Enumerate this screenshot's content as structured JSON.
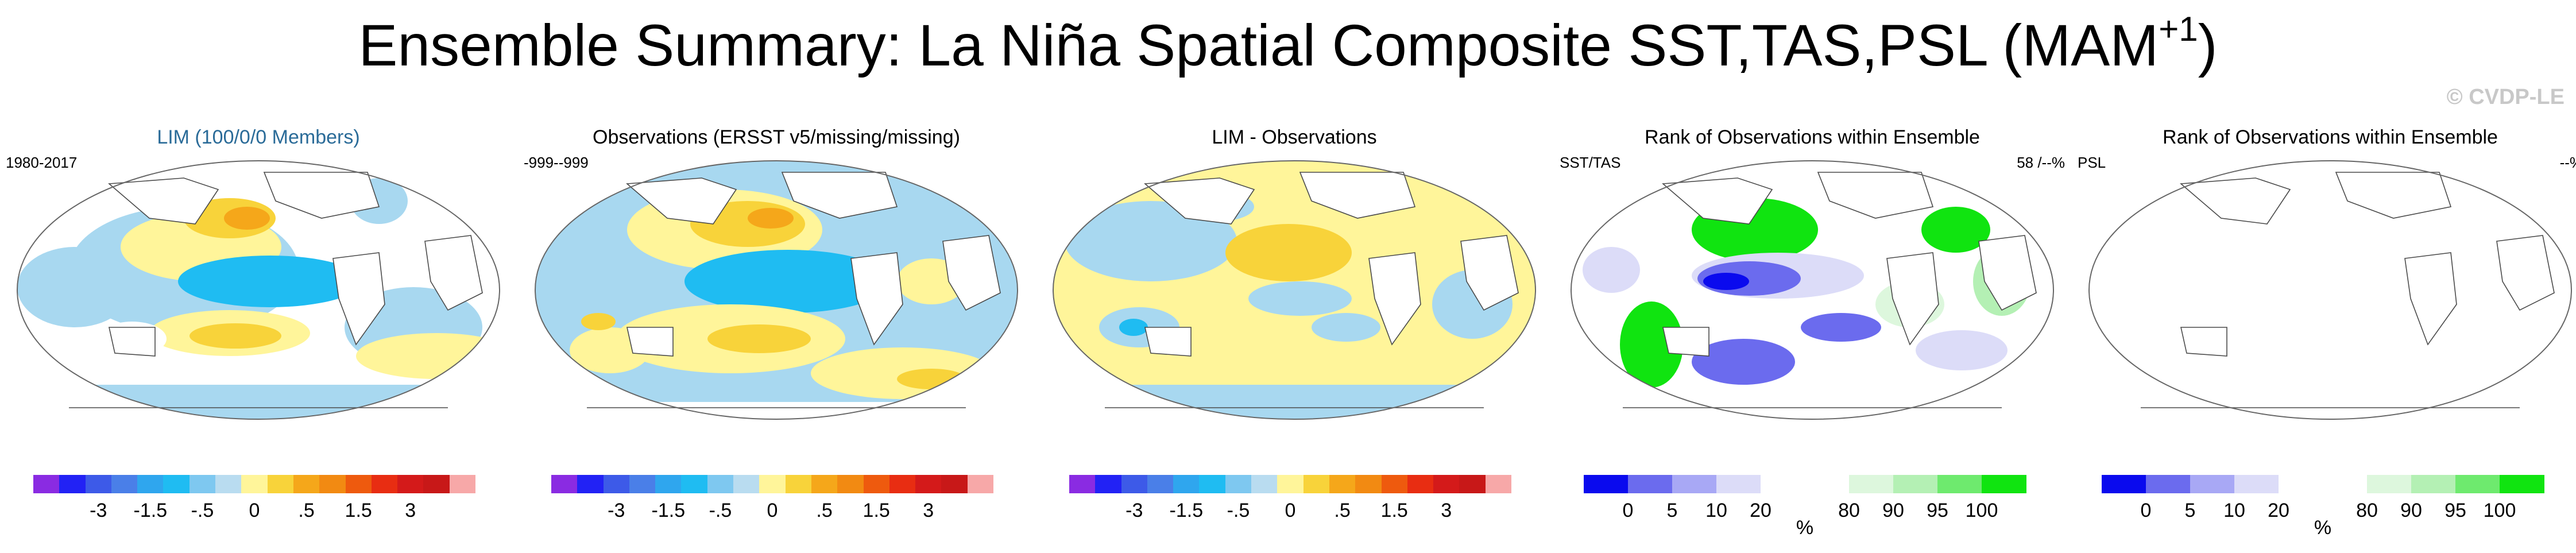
{
  "title": "Ensemble Summary: La Niña Spatial Composite SST,TAS,PSL (MAM",
  "title_superscript": "+1",
  "title_close": ")",
  "watermark": "© CVDP-LE",
  "panels": [
    {
      "title": "LIM (100/0/0 Members)",
      "left_label": "1980-2017",
      "right_label": "",
      "type": "anomaly"
    },
    {
      "title": "Observations (ERSST v5/missing/missing)",
      "left_label": "-999--999",
      "right_label": "",
      "type": "anomaly"
    },
    {
      "title": "LIM - Observations",
      "left_label": "",
      "right_label": "",
      "type": "anomaly"
    },
    {
      "title": "Rank of Observations within Ensemble",
      "left_label": "SST/TAS",
      "right_label": "58 /--%",
      "type": "rank"
    },
    {
      "title": "Rank of Observations within Ensemble",
      "left_label": "PSL",
      "right_label": "--%",
      "type": "rank"
    }
  ],
  "anomaly_colorbar": {
    "colors": [
      "#8a2be2",
      "#2222f5",
      "#3d5ae8",
      "#4a7fe8",
      "#2fa6ee",
      "#1fbcf2",
      "#7ec8f0",
      "#b9dcf0",
      "#fff59a",
      "#f8d33a",
      "#f5a71a",
      "#f28a12",
      "#ee5a0e",
      "#e82d12",
      "#d41a1a",
      "#c81818",
      "#f7a8a8"
    ],
    "labels": [
      "-3",
      "-1.5",
      "-.5",
      "0",
      ".5",
      "1.5",
      "3"
    ]
  },
  "rank_colorbar": {
    "colors": [
      "#0a0aee",
      "#6b6bee",
      "#a8a8f5",
      "#dcdcf8",
      "#ffffff",
      "#ffffff",
      "#ddf7dd",
      "#b4f0b4",
      "#6eea6e",
      "#10e410"
    ],
    "labels": [
      "0",
      "5",
      "10",
      "20",
      "80",
      "90",
      "95",
      "100"
    ],
    "unit": "%"
  },
  "map_colors": {
    "land_outline": "#4a4a4a",
    "frame": "#666666",
    "cool": "#a8d8f0",
    "cool_strong": "#1fbcf2",
    "warm": "#fff59a",
    "warm_strong": "#f8d33a",
    "warm_core": "#f5a71a",
    "rank_green": "#10e410",
    "rank_light_green": "#ddf7dd",
    "rank_blue": "#0a0aee",
    "rank_mid_blue": "#6b6bee",
    "rank_light_blue": "#dcdcf8"
  }
}
